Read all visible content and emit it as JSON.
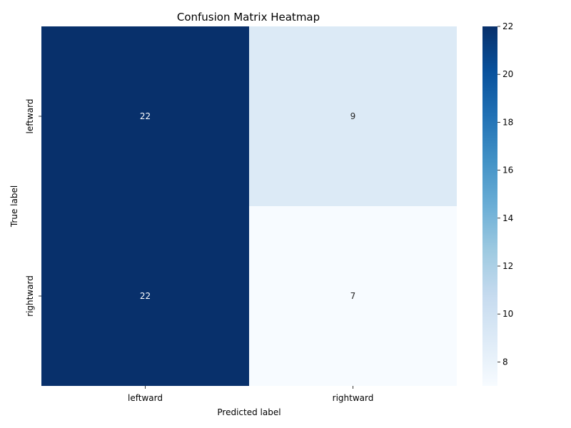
{
  "chart_data": {
    "type": "heatmap",
    "title": "Confusion Matrix Heatmap",
    "xlabel": "Predicted label",
    "ylabel": "True label",
    "x_categories": [
      "leftward",
      "rightward"
    ],
    "y_categories": [
      "leftward",
      "rightward"
    ],
    "values": [
      [
        22,
        9
      ],
      [
        22,
        7
      ]
    ],
    "colormap": "Blues",
    "color_range": [
      7,
      22
    ],
    "colorbar_ticks": [
      8,
      10,
      12,
      14,
      16,
      18,
      20,
      22
    ],
    "annotations": true
  }
}
